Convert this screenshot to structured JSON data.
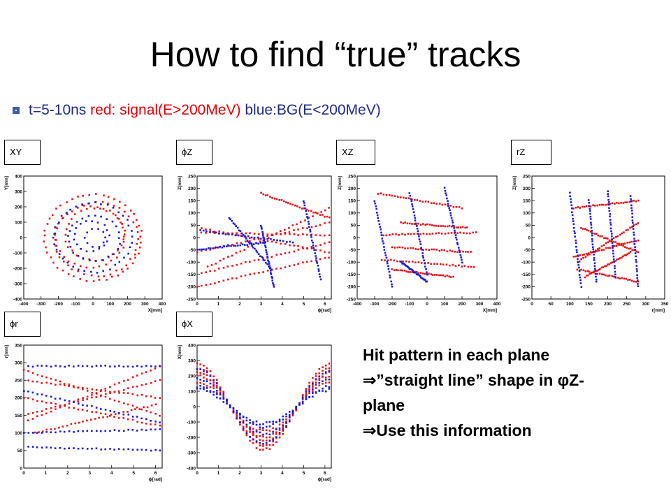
{
  "slide": {
    "title": "How to find “true” tracks",
    "bullet": {
      "prefix": "t=5-10ns ",
      "red_text": "red: signal(E>200MeV)",
      "blue_text": " blue:BG(E<200MeV)"
    },
    "note": {
      "line1": "Hit pattern in each plane",
      "line2": "⇒”straight line” shape in φZ-",
      "line3": "plane",
      "line4": "⇒Use this information"
    },
    "colors": {
      "signal": "#e8141a",
      "background": "#1b1bd6",
      "bullet_text": "#1f2c87"
    }
  },
  "panels": {
    "xy": {
      "label": "XY"
    },
    "phiz": {
      "label": "ϕZ"
    },
    "xz": {
      "label": "XZ"
    },
    "rz": {
      "label": "rZ"
    },
    "phir": {
      "label": "ϕr"
    },
    "phix": {
      "label": "ϕX"
    }
  },
  "chart_data": [
    {
      "id": "xy",
      "type": "scatter",
      "xlabel": "X[mm]",
      "ylabel": "Y[mm]",
      "xlim": [
        -400,
        400
      ],
      "ylim": [
        -400,
        400
      ],
      "xticks": [
        -400,
        -300,
        -200,
        -100,
        0,
        100,
        200,
        300,
        400
      ],
      "yticks": [
        -400,
        -300,
        -200,
        -100,
        0,
        100,
        200,
        300,
        400
      ],
      "xticklabels": [
        "-400",
        "-300",
        "-200",
        "-100",
        "0",
        "100",
        "200",
        "300",
        "400"
      ],
      "yticklabels": [
        "-400",
        "-300",
        "-200",
        "-100",
        "0",
        "100",
        "200",
        "300",
        "400"
      ],
      "series": [
        {
          "color": "#e8141a",
          "rings": [
            [
              0,
              0,
              280
            ],
            [
              20,
              -10,
              240
            ],
            [
              -15,
              5,
              200
            ],
            [
              10,
              20,
              170
            ]
          ]
        },
        {
          "color": "#1b1bd6",
          "rings": [
            [
              0,
              0,
              225
            ],
            [
              5,
              -5,
              150
            ],
            [
              -10,
              10,
              100
            ],
            [
              15,
              0,
              60
            ]
          ]
        }
      ]
    },
    {
      "id": "phiz",
      "type": "scatter",
      "xlabel": "ϕ[rad]",
      "ylabel": "Z[mm]",
      "xlim": [
        0,
        6.3
      ],
      "ylim": [
        -250,
        250
      ],
      "xticks": [
        0,
        1,
        2,
        3,
        4,
        5,
        6
      ],
      "yticks": [
        -250,
        -200,
        -150,
        -100,
        -50,
        0,
        50,
        100,
        150,
        200,
        250
      ],
      "xticklabels": [
        "0",
        "1",
        "2",
        "3",
        "4",
        "5",
        "6"
      ],
      "yticklabels": [
        "-250",
        "-200",
        "-150",
        "-100",
        "-50",
        "0",
        "50",
        "100",
        "150",
        "200",
        "250"
      ],
      "series": [
        {
          "color": "#e8141a",
          "lines": [
            [
              0,
              -200,
              6.2,
              -80
            ],
            [
              0,
              -150,
              6.2,
              -20
            ],
            [
              0,
              -60,
              6.2,
              60
            ],
            [
              0,
              20,
              6.2,
              10
            ],
            [
              0,
              40,
              6.2,
              -60
            ],
            [
              3.0,
              180,
              6.2,
              80
            ],
            [
              0.5,
              -120,
              6.2,
              120
            ]
          ]
        },
        {
          "color": "#1b1bd6",
          "lines": [
            [
              0,
              30,
              4.5,
              -20
            ],
            [
              0,
              -50,
              3.2,
              -20
            ],
            [
              1.5,
              80,
              3.5,
              -130
            ],
            [
              3.0,
              50,
              3.6,
              -200
            ],
            [
              5.0,
              150,
              5.8,
              -170
            ]
          ]
        }
      ]
    },
    {
      "id": "xz",
      "type": "scatter",
      "xlabel": "X[mm]",
      "ylabel": "Z[mm]",
      "xlim": [
        -400,
        400
      ],
      "ylim": [
        -250,
        250
      ],
      "xticks": [
        -400,
        -300,
        -200,
        -100,
        0,
        100,
        200,
        300,
        400
      ],
      "yticks": [
        -250,
        -200,
        -150,
        -100,
        -50,
        0,
        50,
        100,
        150,
        200,
        250
      ],
      "xticklabels": [
        "-400",
        "-300",
        "-200",
        "-100",
        "0",
        "100",
        "200",
        "300",
        "400"
      ],
      "yticklabels": [
        "-250",
        "-200",
        "-150",
        "-100",
        "-50",
        "0",
        "50",
        "100",
        "150",
        "200",
        "250"
      ],
      "series": [
        {
          "color": "#e8141a",
          "lines": [
            [
              -280,
              180,
              200,
              120
            ],
            [
              -250,
              10,
              280,
              20
            ],
            [
              -200,
              -40,
              250,
              -60
            ],
            [
              -260,
              -90,
              270,
              -120
            ],
            [
              -200,
              -130,
              150,
              -160
            ],
            [
              -150,
              60,
              230,
              40
            ]
          ]
        },
        {
          "color": "#1b1bd6",
          "lines": [
            [
              -300,
              150,
              -200,
              -200
            ],
            [
              -100,
              180,
              0,
              -150
            ],
            [
              -150,
              -100,
              0,
              -180
            ],
            [
              100,
              200,
              200,
              -100
            ]
          ]
        }
      ]
    },
    {
      "id": "rz",
      "type": "scatter",
      "xlabel": "r[mm]",
      "ylabel": "Z[mm]",
      "xlim": [
        0,
        350
      ],
      "ylim": [
        -250,
        250
      ],
      "xticks": [
        0,
        50,
        100,
        150,
        200,
        250,
        300,
        350
      ],
      "yticks": [
        -250,
        -200,
        -150,
        -100,
        -50,
        0,
        50,
        100,
        150,
        200,
        250
      ],
      "xticklabels": [
        "0",
        "50",
        "100",
        "150",
        "200",
        "250",
        "300",
        "350"
      ],
      "yticklabels": [
        "-250",
        "-200",
        "-150",
        "-100",
        "-50",
        "0",
        "50",
        "100",
        "150",
        "200",
        "250"
      ],
      "series": [
        {
          "color": "#e8141a",
          "lines": [
            [
              110,
              120,
              280,
              150
            ],
            [
              110,
              -80,
              280,
              -10
            ],
            [
              120,
              -100,
              280,
              60
            ],
            [
              130,
              40,
              280,
              -60
            ],
            [
              120,
              -130,
              280,
              -180
            ],
            [
              140,
              -160,
              260,
              -60
            ]
          ]
        },
        {
          "color": "#1b1bd6",
          "lines": [
            [
              100,
              180,
              130,
              -200
            ],
            [
              150,
              150,
              170,
              -180
            ],
            [
              200,
              190,
              220,
              -160
            ],
            [
              260,
              170,
              280,
              -200
            ]
          ]
        }
      ]
    },
    {
      "id": "phir",
      "type": "scatter",
      "xlabel": "ϕ[rad]",
      "ylabel": "r[mm]",
      "xlim": [
        0,
        6.3
      ],
      "ylim": [
        0,
        350
      ],
      "xticks": [
        0,
        1,
        2,
        3,
        4,
        5,
        6
      ],
      "yticks": [
        0,
        50,
        100,
        150,
        200,
        250,
        300,
        350
      ],
      "xticklabels": [
        "0",
        "1",
        "2",
        "3",
        "4",
        "5",
        "6"
      ],
      "yticklabels": [
        "0",
        "50",
        "100",
        "150",
        "200",
        "250",
        "300",
        "350"
      ],
      "series": [
        {
          "color": "#e8141a",
          "lines": [
            [
              0,
              280,
              6.2,
              150
            ],
            [
              0,
              150,
              6.2,
              250
            ],
            [
              0,
              200,
              6.2,
              120
            ],
            [
              0,
              130,
              6.2,
              290
            ],
            [
              0,
              250,
              6.2,
              200
            ],
            [
              0.5,
              100,
              6.0,
              180
            ]
          ]
        },
        {
          "color": "#1b1bd6",
          "lines": [
            [
              0,
              290,
              6.2,
              290
            ],
            [
              0,
              60,
              6.2,
              50
            ],
            [
              0,
              100,
              6.2,
              110
            ],
            [
              0,
              220,
              6.2,
              130
            ]
          ]
        }
      ]
    },
    {
      "id": "phix",
      "type": "scatter",
      "xlabel": "ϕ[rad]",
      "ylabel": "X[mm]",
      "xlim": [
        0,
        6.3
      ],
      "ylim": [
        -400,
        400
      ],
      "xticks": [
        0,
        1,
        2,
        3,
        4,
        5,
        6
      ],
      "yticks": [
        -400,
        -300,
        -200,
        -100,
        0,
        100,
        200,
        300,
        400
      ],
      "xticklabels": [
        "0",
        "1",
        "2",
        "3",
        "4",
        "5",
        "6"
      ],
      "yticklabels": [
        "-400",
        "-300",
        "-200",
        "-100",
        "0",
        "100",
        "200",
        "300",
        "400"
      ],
      "series": [
        {
          "color": "#e8141a",
          "cos_bands": [
            280,
            250,
            220,
            200,
            160
          ]
        },
        {
          "color": "#1b1bd6",
          "cos_bands": [
            240,
            180,
            130,
            110
          ]
        }
      ]
    }
  ]
}
